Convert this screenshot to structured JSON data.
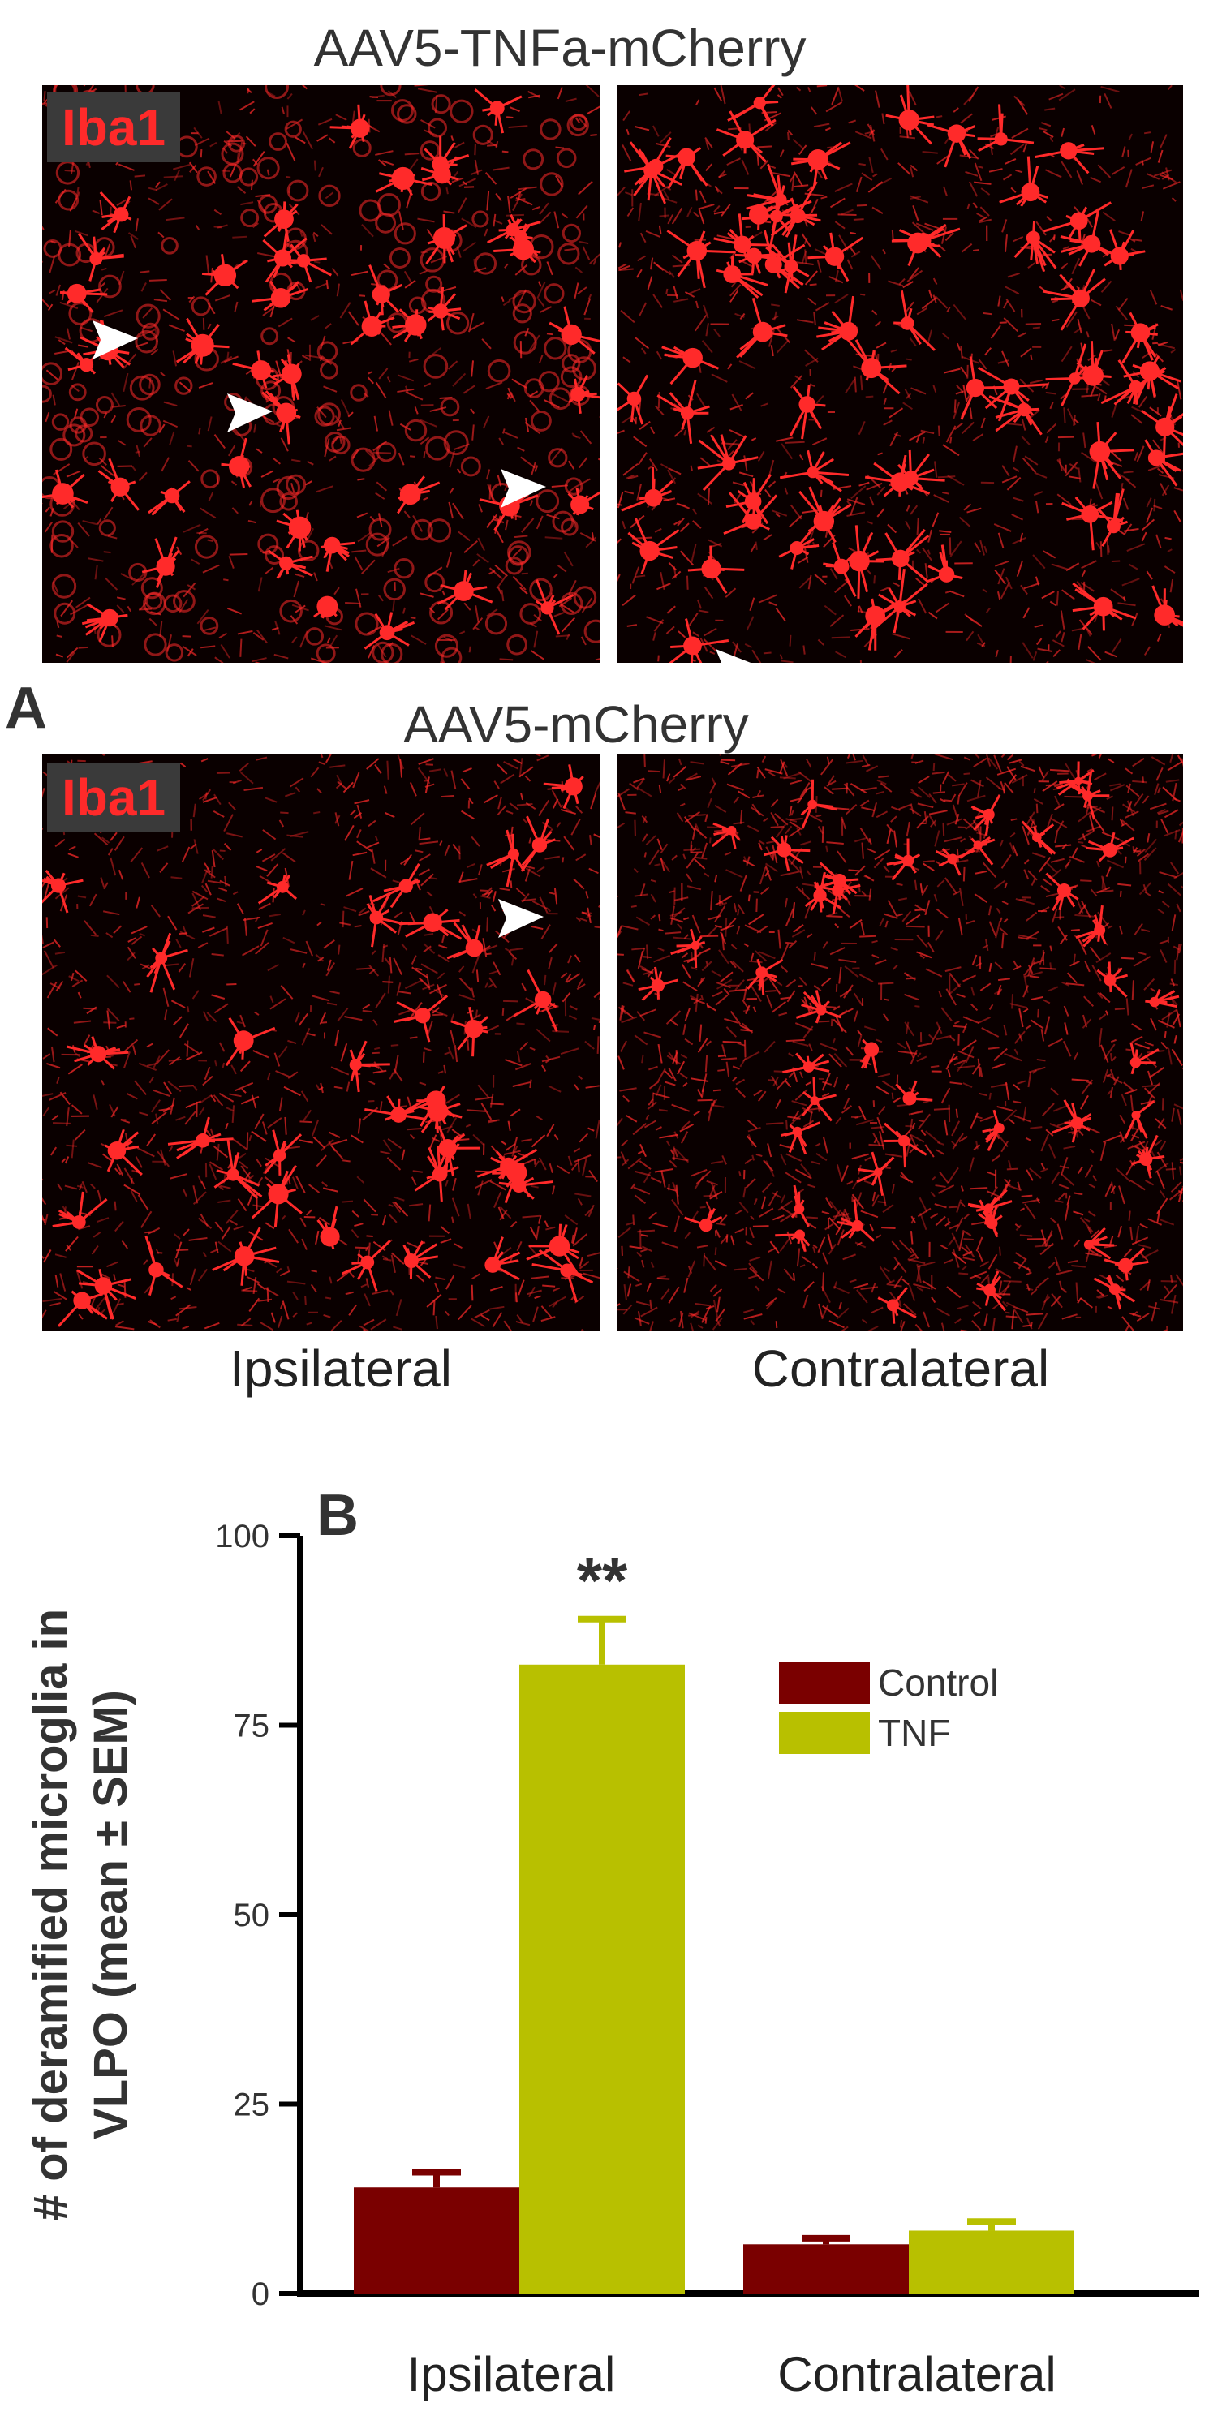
{
  "figure": {
    "panel_a_letter": "A",
    "panel_b_letter": "B",
    "row_titles": [
      "AAV5-TNFa-mCherry",
      "AAV5-mCherry"
    ],
    "stain_label": "Iba1",
    "column_labels": [
      "Ipsilateral",
      "Contralateral"
    ],
    "stain_color": "#ff2a2a",
    "arrowhead_color": "#ffffff",
    "micrograph_background": "#0a0000"
  },
  "chart_data": {
    "type": "bar",
    "categories": [
      "Ipsilateral",
      "Contralateral"
    ],
    "series": [
      {
        "name": "Control",
        "color": "#7a0000",
        "values": [
          14,
          6.5
        ],
        "errors": [
          2,
          0.8
        ]
      },
      {
        "name": "TNF",
        "color": "#b8c000",
        "values": [
          83,
          8.3
        ],
        "errors": [
          6,
          1.2
        ]
      }
    ],
    "ylabel": "# of deramified microglia in VLPO (mean + SEM)",
    "ylabel_lines": [
      "# of deramified microglia in",
      "VLPO (mean ± SEM)"
    ],
    "ylim": [
      0,
      100
    ],
    "yticks": [
      0,
      25,
      50,
      75,
      100
    ],
    "annotations": [
      {
        "text": "**",
        "category": "Ipsilateral",
        "series": "TNF"
      }
    ],
    "legend_position": "top-right",
    "grid": false
  }
}
